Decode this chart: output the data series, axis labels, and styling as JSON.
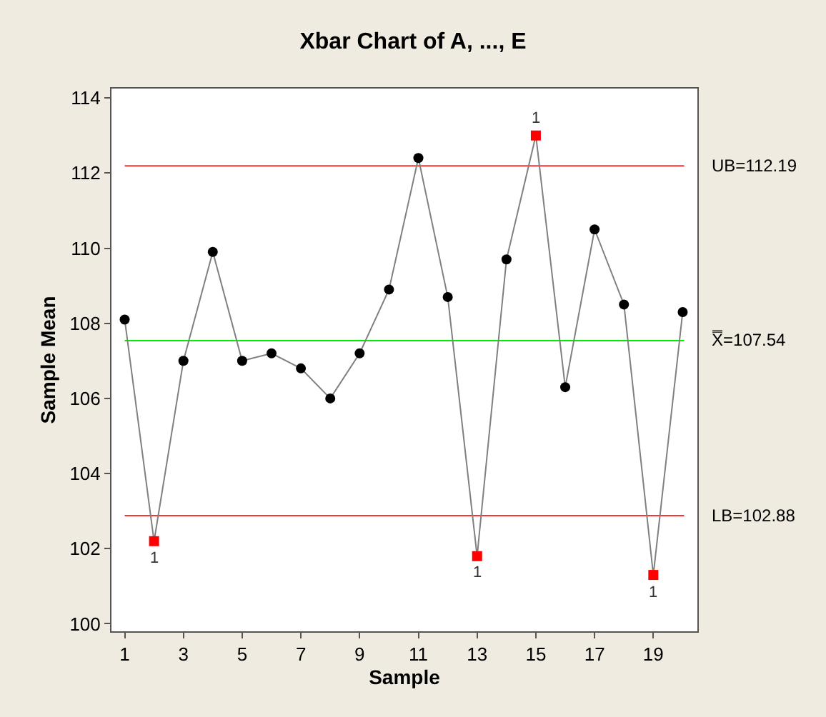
{
  "chart_data": {
    "type": "line",
    "title": "Xbar Chart of A, ..., E",
    "xlabel": "Sample",
    "ylabel": "Sample Mean",
    "xlim": [
      0.55,
      20.5
    ],
    "xticks": [
      1,
      3,
      5,
      7,
      9,
      11,
      13,
      15,
      17,
      19
    ],
    "ylim": [
      99.8,
      114.25
    ],
    "yticks": [
      100,
      102,
      104,
      106,
      108,
      110,
      112,
      114
    ],
    "grid": false,
    "series": [
      {
        "color": "#808080",
        "marker": "none",
        "x": [
          1,
          2,
          3,
          4,
          5,
          6,
          7,
          8,
          9,
          10,
          11,
          12,
          13,
          14,
          15,
          16,
          17,
          18,
          19,
          20
        ],
        "values": [
          108.1,
          102.2,
          107.0,
          109.9,
          107.0,
          107.2,
          106.8,
          106.0,
          107.2,
          108.9,
          112.4,
          108.7,
          101.8,
          109.7,
          113.0,
          106.3,
          110.5,
          108.5,
          101.3,
          108.3
        ]
      },
      {
        "type": "scatter",
        "color": "#000000",
        "marker": "circle",
        "x": [
          1,
          3,
          4,
          5,
          6,
          7,
          8,
          9,
          10,
          11,
          12,
          14,
          16,
          17,
          18,
          20
        ],
        "values": [
          108.1,
          107.0,
          109.9,
          107.0,
          107.2,
          106.8,
          106.0,
          107.2,
          108.9,
          112.4,
          108.7,
          109.7,
          106.3,
          110.5,
          108.5,
          108.3
        ]
      },
      {
        "type": "scatter",
        "color": "#ff0000",
        "marker": "square",
        "x": [
          2,
          13,
          15,
          19
        ],
        "values": [
          102.2,
          101.8,
          113.0,
          101.3
        ]
      }
    ],
    "annotations": [
      {
        "text": "1",
        "x": 2,
        "y": 102.2
      },
      {
        "text": "1",
        "x": 13,
        "y": 101.8
      },
      {
        "text": "1",
        "x": 15,
        "y": 113.0
      },
      {
        "text": "1",
        "x": 19,
        "y": 101.3
      }
    ],
    "ref_lines": [
      {
        "axis": "y",
        "value": 112.19,
        "label": "UB=112.19",
        "color": "#ff3030"
      },
      {
        "axis": "y",
        "value": 107.54,
        "label": "X̿=107.54",
        "color": "#00ee00"
      },
      {
        "axis": "y",
        "value": 102.88,
        "label": "LB=102.88",
        "color": "#ff3030"
      }
    ]
  }
}
